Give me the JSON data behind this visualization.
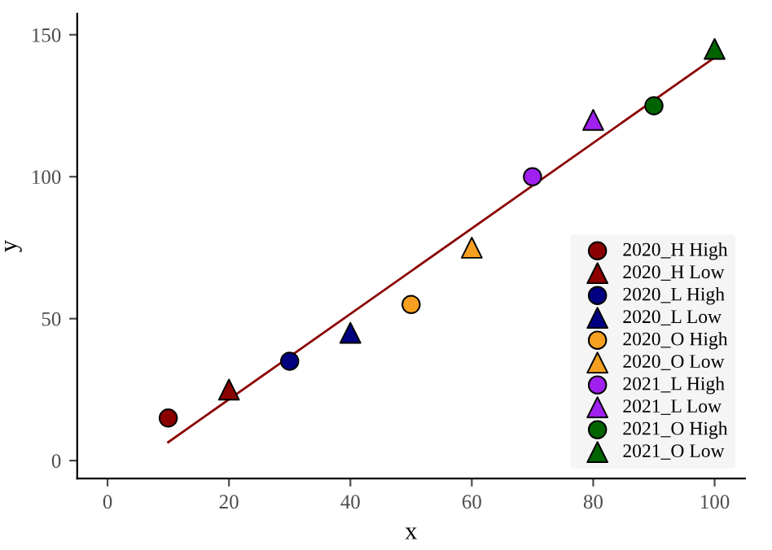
{
  "chart_data": {
    "type": "scatter",
    "xlabel": "x",
    "ylabel": "y",
    "xlim": [
      -5,
      105
    ],
    "ylim": [
      -6.3,
      157.4
    ],
    "xticks": [
      0,
      20,
      40,
      60,
      80,
      100
    ],
    "yticks": [
      0,
      50,
      100,
      150
    ],
    "grid": false,
    "legend": "bottom right",
    "series": [
      {
        "name": "2020_H High",
        "color": "#8b0000",
        "marker": "circle",
        "x": [
          10
        ],
        "values": [
          15
        ]
      },
      {
        "name": "2020_H Low",
        "color": "#8b0000",
        "marker": "triangle",
        "x": [
          20
        ],
        "values": [
          25
        ]
      },
      {
        "name": "2020_L High",
        "color": "#000080",
        "marker": "circle",
        "x": [
          30
        ],
        "values": [
          35
        ]
      },
      {
        "name": "2020_L Low",
        "color": "#000080",
        "marker": "triangle",
        "x": [
          40
        ],
        "values": [
          45
        ]
      },
      {
        "name": "2020_O High",
        "color": "#f5a020",
        "marker": "circle",
        "x": [
          50
        ],
        "values": [
          55
        ]
      },
      {
        "name": "2020_O Low",
        "color": "#f5a020",
        "marker": "triangle",
        "x": [
          60
        ],
        "values": [
          75
        ]
      },
      {
        "name": "2021_L High",
        "color": "#a020f0",
        "marker": "circle",
        "x": [
          70
        ],
        "values": [
          100
        ]
      },
      {
        "name": "2021_L Low",
        "color": "#a020f0",
        "marker": "triangle",
        "x": [
          80
        ],
        "values": [
          120
        ]
      },
      {
        "name": "2021_O High",
        "color": "#006400",
        "marker": "circle",
        "x": [
          90
        ],
        "values": [
          125
        ]
      },
      {
        "name": "2021_O Low",
        "color": "#006400",
        "marker": "triangle",
        "x": [
          100
        ],
        "values": [
          145
        ]
      },
      {
        "type": "line",
        "color": "#8b0000",
        "marker": "none",
        "x": [
          10,
          100
        ],
        "values": [
          6.5,
          142
        ]
      }
    ]
  }
}
